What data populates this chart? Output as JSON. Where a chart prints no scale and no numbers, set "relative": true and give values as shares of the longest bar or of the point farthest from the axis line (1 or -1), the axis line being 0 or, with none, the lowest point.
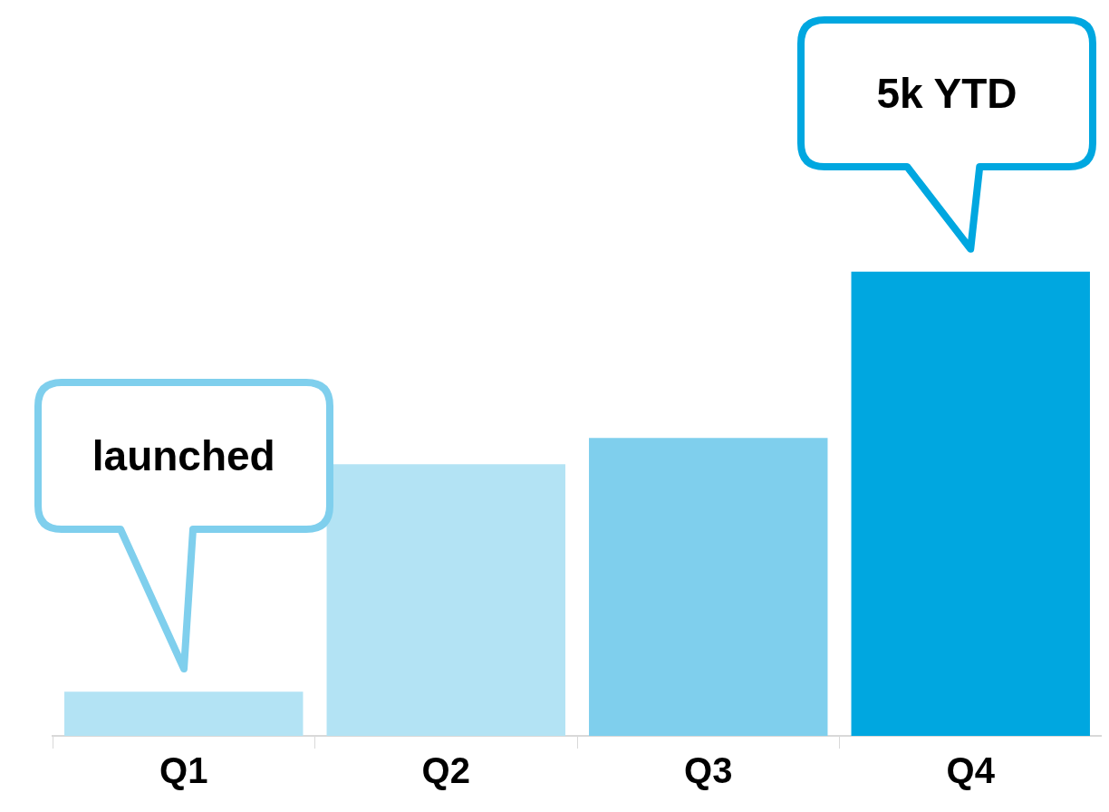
{
  "chart_data": {
    "type": "bar",
    "relative": true,
    "categories": [
      "Q1",
      "Q2",
      "Q3",
      "Q4"
    ],
    "values": [
      0.095,
      0.585,
      0.642,
      1
    ],
    "colors": [
      "#b3e3f4",
      "#b3e3f4",
      "#7fcfed",
      "#00a7e0"
    ],
    "annotations": [
      "launched",
      "5k YTD"
    ]
  }
}
